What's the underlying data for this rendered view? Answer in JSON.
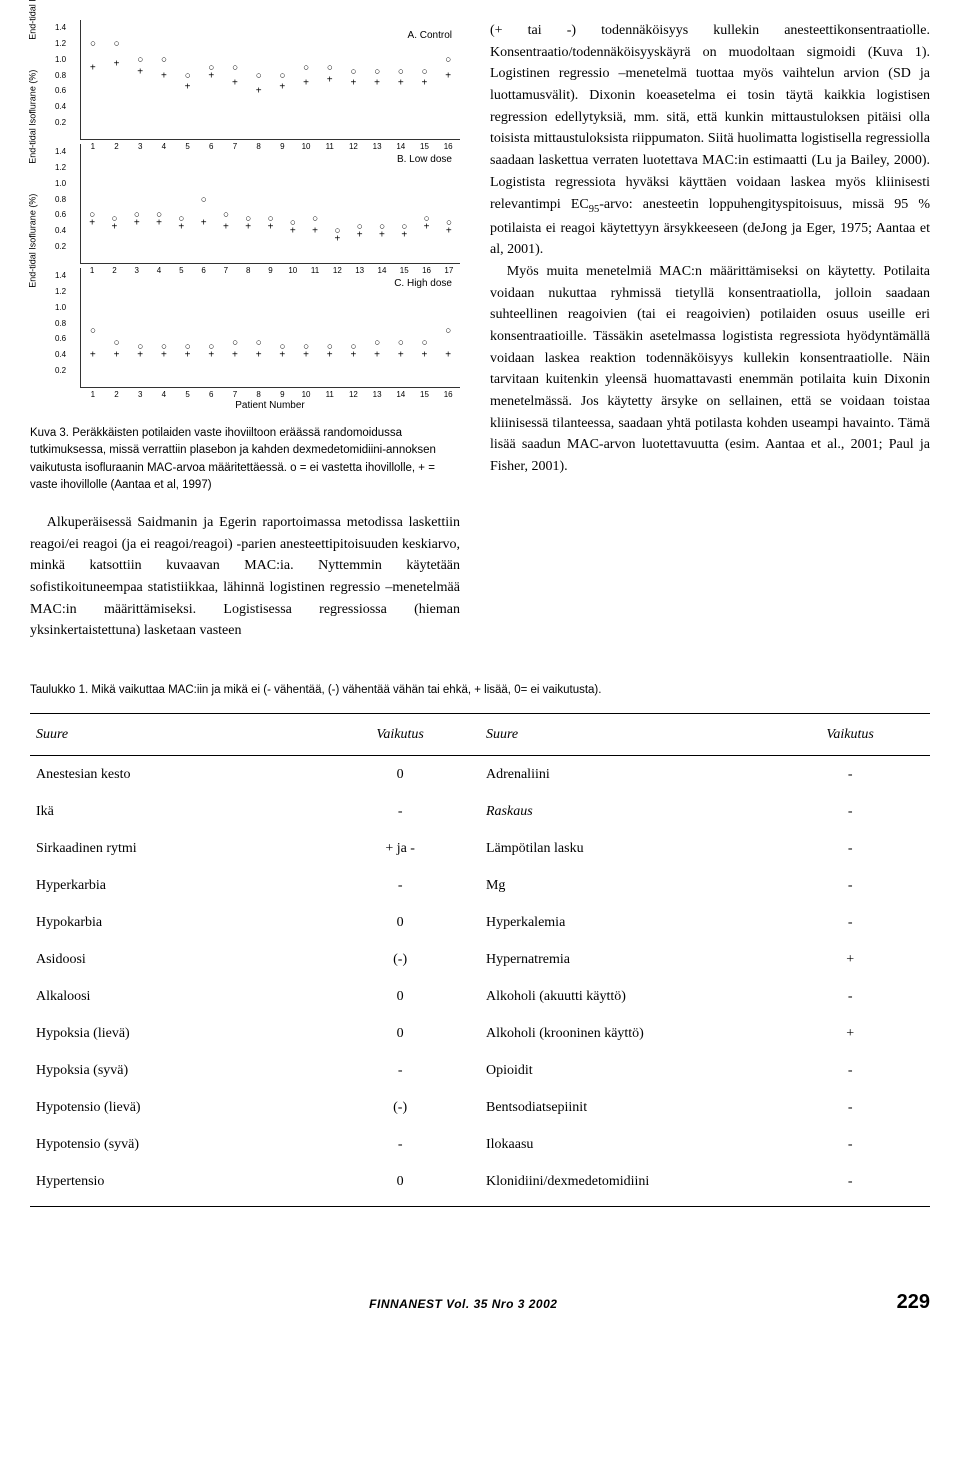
{
  "charts": {
    "ylabel": "End-tidal Isoflurane (%)",
    "xlabel": "Patient Number",
    "yticks": [
      0.2,
      0.4,
      0.6,
      0.8,
      1.0,
      1.2,
      1.4
    ],
    "ylim": [
      0,
      1.5
    ],
    "panels": [
      {
        "title": "A. Control",
        "xmax": 16,
        "data": [
          {
            "x": 1,
            "o": 1.2,
            "p": 0.9
          },
          {
            "x": 2,
            "o": 1.2,
            "p": 0.95
          },
          {
            "x": 3,
            "o": 1.0,
            "p": 0.85
          },
          {
            "x": 4,
            "o": 1.0,
            "p": 0.8
          },
          {
            "x": 5,
            "o": 0.8,
            "p": 0.65
          },
          {
            "x": 6,
            "o": 0.9,
            "p": 0.8
          },
          {
            "x": 7,
            "o": 0.9,
            "p": 0.7
          },
          {
            "x": 8,
            "o": 0.8,
            "p": 0.6
          },
          {
            "x": 9,
            "o": 0.8,
            "p": 0.65
          },
          {
            "x": 10,
            "o": 0.9,
            "p": 0.7
          },
          {
            "x": 11,
            "o": 0.9,
            "p": 0.75
          },
          {
            "x": 12,
            "o": 0.85,
            "p": 0.7
          },
          {
            "x": 13,
            "o": 0.85,
            "p": 0.7
          },
          {
            "x": 14,
            "o": 0.85,
            "p": 0.7
          },
          {
            "x": 15,
            "o": 0.85,
            "p": 0.7
          },
          {
            "x": 16,
            "o": 1.0,
            "p": 0.8
          }
        ]
      },
      {
        "title": "B. Low dose",
        "xmax": 17,
        "data": [
          {
            "x": 1,
            "o": 0.6,
            "p": 0.5
          },
          {
            "x": 2,
            "o": 0.55,
            "p": 0.45
          },
          {
            "x": 3,
            "o": 0.6,
            "p": 0.5
          },
          {
            "x": 4,
            "o": 0.6,
            "p": 0.5
          },
          {
            "x": 5,
            "o": 0.55,
            "p": 0.45
          },
          {
            "x": 6,
            "o": 0.8,
            "p": 0.5
          },
          {
            "x": 7,
            "o": 0.6,
            "p": 0.45
          },
          {
            "x": 8,
            "o": 0.55,
            "p": 0.45
          },
          {
            "x": 9,
            "o": 0.55,
            "p": 0.45
          },
          {
            "x": 10,
            "o": 0.5,
            "p": 0.4
          },
          {
            "x": 11,
            "o": 0.55,
            "p": 0.4
          },
          {
            "x": 12,
            "o": 0.4,
            "p": 0.3
          },
          {
            "x": 13,
            "o": 0.45,
            "p": 0.35
          },
          {
            "x": 14,
            "o": 0.45,
            "p": 0.35
          },
          {
            "x": 15,
            "o": 0.45,
            "p": 0.35
          },
          {
            "x": 16,
            "o": 0.55,
            "p": 0.45
          },
          {
            "x": 17,
            "o": 0.5,
            "p": 0.4
          }
        ]
      },
      {
        "title": "C. High dose",
        "xmax": 16,
        "data": [
          {
            "x": 1,
            "o": 0.7,
            "p": 0.4
          },
          {
            "x": 2,
            "o": 0.55,
            "p": 0.4
          },
          {
            "x": 3,
            "o": 0.5,
            "p": 0.4
          },
          {
            "x": 4,
            "o": 0.5,
            "p": 0.4
          },
          {
            "x": 5,
            "o": 0.5,
            "p": 0.4
          },
          {
            "x": 6,
            "o": 0.5,
            "p": 0.4
          },
          {
            "x": 7,
            "o": 0.55,
            "p": 0.4
          },
          {
            "x": 8,
            "o": 0.55,
            "p": 0.4
          },
          {
            "x": 9,
            "o": 0.5,
            "p": 0.4
          },
          {
            "x": 10,
            "o": 0.5,
            "p": 0.4
          },
          {
            "x": 11,
            "o": 0.5,
            "p": 0.4
          },
          {
            "x": 12,
            "o": 0.5,
            "p": 0.4
          },
          {
            "x": 13,
            "o": 0.55,
            "p": 0.4
          },
          {
            "x": 14,
            "o": 0.55,
            "p": 0.4
          },
          {
            "x": 15,
            "o": 0.55,
            "p": 0.4
          },
          {
            "x": 16,
            "o": 0.7,
            "p": 0.4
          }
        ]
      }
    ]
  },
  "figure_caption": "Kuva 3. Peräkkäisten potilaiden vaste ihoviiltoon eräässä randomoidussa tutkimuksessa, missä verrattiin plasebon ja kahden dexmedetomidiini-annoksen vaikutusta isofluraanin MAC-arvoa määritettäessä. o = ei vastetta ihovillolle, + = vaste ihovillolle (Aantaa et al, 1997)",
  "left_para": "Alkuperäisessä Saidmanin ja Egerin raportoimassa metodissa laskettiin reagoi/ei reagoi (ja ei reagoi/reagoi) -parien anesteettipitoisuuden keskiarvo, minkä katsottiin kuvaavan MAC:ia. Nyttemmin käytetään sofistikoituneempaa statistiikkaa, lähinnä logistinen regressio –menetelmää MAC:in määrittämiseksi. Logistisessa regressiossa (hieman yksinkertaistettuna) lasketaan vasteen",
  "right_para1": "(+ tai -) todennäköisyys kullekin anesteettikonsentraatiolle. Konsentraatio/todennäköisyyskäyrä on muodoltaan sigmoidi (Kuva 1). Logistinen regressio –menetelmä tuottaa myös vaihtelun arvion (SD ja luottamusvälit). Dixonin koeasetelma ei tosin täytä kaikkia logistisen regression edellytyksiä, mm. sitä, että kunkin mittaustuloksen pitäisi olla toisista mittaustuloksista riippumaton. Siitä huolimatta logistisella regressiolla saadaan laskettua verraten luotettava MAC:in estimaatti (Lu ja Bailey, 2000). Logistista regressiota hyväksi käyttäen voidaan laskea myös kliinisesti relevantimpi EC",
  "right_para1_sub": "95",
  "right_para1_cont": "-arvo: anesteetin loppuhengityspitoisuus, missä 95 % potilaista ei reagoi käytettyyn ärsykkeeseen (deJong ja Eger, 1975; Aantaa et al, 2001).",
  "right_para2": "Myös muita menetelmiä MAC:n määrittämiseksi on käytetty. Potilaita voidaan nukuttaa ryhmissä tietyllä konsentraatiolla, jolloin saadaan suhteellinen reagoivien (tai ei reagoivien) potilaiden osuus useille eri konsentraatioille. Tässäkin asetelmassa logistista regressiota hyödyntämällä voidaan laskea reaktion todennäköisyys kullekin konsentraatiolle. Näin tarvitaan kuitenkin yleensä huomattavasti enemmän potilaita kuin Dixonin menetelmässä. Jos käytetty ärsyke on sellainen, että se voidaan toistaa kliinisessä tilanteessa, saadaan yhtä potilasta kohden useampi havainto. Tämä lisää saadun MAC-arvon luotettavuutta (esim. Aantaa et al., 2001; Paul ja Fisher, 2001).",
  "table_caption": "Taulukko 1. Mikä vaikuttaa MAC:iin ja mikä ei (- vähentää, (-) vähentää vähän tai ehkä, + lisää, 0= ei vaikutusta).",
  "table_headers": {
    "h1": "Suure",
    "h2": "Vaikutus",
    "h3": "Suure",
    "h4": "Vaikutus"
  },
  "table_rows": [
    {
      "l": "Anestesian kesto",
      "le": "0",
      "r": "Adrenaliini",
      "re": "-"
    },
    {
      "l": "Ikä",
      "le": "-",
      "r": "Raskaus",
      "re": "-",
      "ritalic": true
    },
    {
      "l": "Sirkaadinen rytmi",
      "le": "+ ja -",
      "r": "Lämpötilan lasku",
      "re": "-"
    },
    {
      "l": "Hyperkarbia",
      "le": "-",
      "r": "Mg",
      "re": "-"
    },
    {
      "l": "Hypokarbia",
      "le": "0",
      "r": "Hyperkalemia",
      "re": "-"
    },
    {
      "l": "Asidoosi",
      "le": "(-)",
      "r": "Hypernatremia",
      "re": "+"
    },
    {
      "l": "Alkaloosi",
      "le": "0",
      "r": "Alkoholi (akuutti käyttö)",
      "re": "-"
    },
    {
      "l": "Hypoksia (lievä)",
      "le": "0",
      "r": "Alkoholi (krooninen käyttö)",
      "re": "+"
    },
    {
      "l": "Hypoksia (syvä)",
      "le": "-",
      "r": "Opioidit",
      "re": "-"
    },
    {
      "l": "Hypotensio (lievä)",
      "le": "(-)",
      "r": "Bentsodiatsepiinit",
      "re": "-"
    },
    {
      "l": "Hypotensio (syvä)",
      "le": "-",
      "r": "Ilokaasu",
      "re": "-"
    },
    {
      "l": "Hypertensio",
      "le": "0",
      "r": "Klonidiini/dexmedetomidiini",
      "re": "-"
    }
  ],
  "footer": {
    "journal": "FINNANEST Vol. 35 Nro 3 2002",
    "page": "229"
  }
}
